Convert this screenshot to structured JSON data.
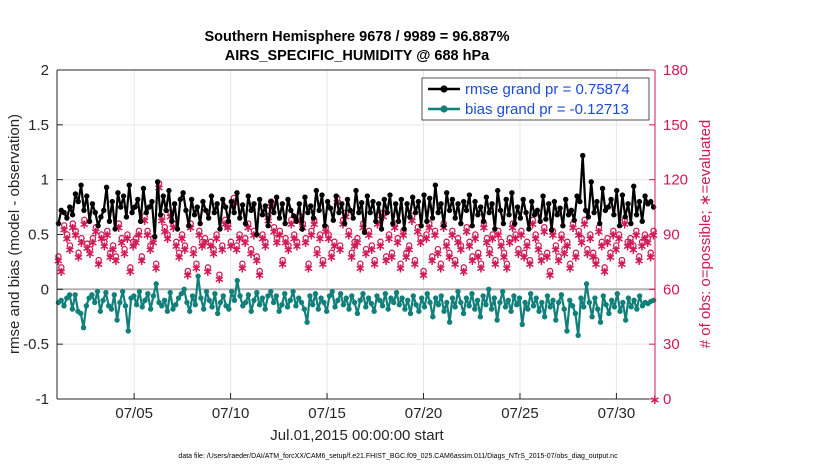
{
  "chart_data": {
    "type": "line",
    "title_line1": "Southern Hemisphere 9678 / 9989 = 96.887%",
    "title_line2": "AIRS_SPECIFIC_HUMIDITY @ 688 hPa",
    "ylabel": "rmse and bias (model - observation)",
    "ylabel_right": "# of obs: o=possible; ∗=evaluated",
    "xlabel": "Jul.01,2015 00:00:00 start",
    "footnote": "data file: /Users/raeder/DAI/ATM_forcXX/CAM6_setup/f.e21.FHIST_BGC.f09_025.CAM6assim.011/Diags_NTrS_2015-07/obs_diag_output.nc",
    "ylim": [
      -1,
      2
    ],
    "ylim_right": [
      0,
      180
    ],
    "xlim": [
      1,
      32
    ],
    "yticks": [
      "-1",
      "-0.5",
      "0",
      "0.5",
      "1",
      "1.5",
      "2"
    ],
    "yticks_right": [
      "0",
      "30",
      "60",
      "90",
      "120",
      "150",
      "180"
    ],
    "xticks": [
      {
        "day": 5,
        "label": "07/05"
      },
      {
        "day": 10,
        "label": "07/10"
      },
      {
        "day": 15,
        "label": "07/15"
      },
      {
        "day": 20,
        "label": "07/20"
      },
      {
        "day": 25,
        "label": "07/25"
      },
      {
        "day": 30,
        "label": "07/30"
      }
    ],
    "legend": [
      {
        "name": "rmse grand pr = 0.75874",
        "color": "#000000"
      },
      {
        "name": "bias grand pr = -0.12713",
        "color": "#12807a"
      }
    ],
    "colors": {
      "rmse": "#000000",
      "bias": "#12807a",
      "obs": "#d01a55",
      "zero": "#b3b3b3"
    },
    "series": [
      {
        "name": "rmse",
        "values": [
          0.6,
          0.72,
          0.7,
          0.65,
          0.75,
          0.68,
          0.87,
          0.8,
          0.95,
          0.72,
          0.85,
          0.62,
          0.78,
          0.7,
          0.58,
          0.66,
          0.72,
          0.93,
          0.62,
          0.8,
          0.55,
          0.88,
          0.75,
          0.85,
          0.66,
          0.95,
          0.7,
          0.75,
          0.82,
          0.62,
          0.92,
          0.7,
          0.75,
          0.8,
          0.48,
          0.98,
          0.68,
          0.85,
          0.72,
          0.9,
          0.62,
          0.78,
          0.55,
          0.82,
          0.88,
          0.72,
          0.58,
          0.82,
          0.68,
          0.75,
          0.6,
          0.8,
          0.72,
          0.65,
          0.85,
          0.7,
          0.78,
          0.55,
          0.82,
          0.75,
          0.62,
          0.8,
          0.7,
          0.88,
          0.65,
          0.77,
          0.6,
          0.85,
          0.72,
          0.78,
          0.5,
          0.82,
          0.68,
          0.76,
          0.58,
          0.8,
          0.7,
          0.84,
          0.65,
          0.78,
          0.6,
          0.82,
          0.72,
          0.67,
          0.62,
          0.78,
          0.55,
          0.84,
          0.7,
          0.76,
          0.65,
          0.9,
          0.72,
          0.86,
          0.58,
          0.8,
          0.74,
          0.63,
          0.85,
          0.7,
          0.78,
          0.6,
          0.82,
          0.72,
          0.65,
          0.9,
          0.7,
          0.79,
          0.52,
          0.85,
          0.7,
          0.8,
          0.62,
          0.78,
          0.55,
          0.82,
          0.7,
          0.86,
          0.6,
          0.78,
          0.62,
          0.82,
          0.55,
          0.78,
          0.66,
          0.84,
          0.7,
          0.8,
          0.58,
          0.86,
          0.62,
          0.83,
          0.65,
          0.95,
          0.7,
          0.78,
          0.58,
          0.88,
          0.72,
          0.82,
          0.65,
          0.78,
          0.6,
          0.8,
          0.72,
          0.86,
          0.58,
          0.8,
          0.68,
          0.75,
          0.62,
          0.84,
          0.7,
          0.78,
          0.55,
          0.9,
          0.72,
          0.6,
          0.82,
          0.68,
          0.88,
          0.6,
          0.75,
          0.65,
          0.82,
          0.7,
          0.55,
          0.8,
          0.68,
          0.72,
          0.62,
          0.85,
          0.64,
          0.78,
          0.54,
          0.8,
          0.68,
          0.74,
          0.58,
          0.82,
          0.68,
          0.72,
          0.63,
          0.85,
          0.8,
          1.22,
          0.72,
          0.66,
          0.98,
          0.7,
          0.8,
          0.6,
          0.92,
          0.72,
          0.75,
          0.82,
          0.68,
          0.9,
          0.58,
          0.86,
          0.66,
          0.78,
          0.6,
          0.94,
          0.68,
          0.8,
          0.62,
          0.85,
          0.78,
          0.8,
          0.75
        ]
      },
      {
        "name": "bias",
        "values": [
          -0.12,
          -0.1,
          -0.15,
          -0.08,
          -0.05,
          -0.18,
          -0.05,
          -0.2,
          -0.22,
          -0.35,
          -0.15,
          -0.08,
          -0.05,
          -0.12,
          -0.02,
          -0.2,
          -0.1,
          -0.03,
          -0.15,
          -0.18,
          -0.05,
          -0.28,
          -0.12,
          -0.02,
          -0.15,
          -0.38,
          -0.08,
          -0.06,
          -0.14,
          -0.02,
          -0.16,
          -0.1,
          -0.04,
          -0.18,
          -0.06,
          0.05,
          -0.12,
          -0.15,
          -0.1,
          -0.2,
          -0.03,
          -0.18,
          -0.14,
          -0.08,
          -0.04,
          0.0,
          -0.12,
          -0.2,
          -0.06,
          -0.14,
          0.12,
          -0.08,
          -0.18,
          -0.02,
          -0.1,
          -0.16,
          -0.04,
          -0.22,
          -0.12,
          -0.06,
          -0.15,
          -0.18,
          -0.02,
          -0.1,
          0.08,
          -0.06,
          -0.15,
          -0.12,
          -0.05,
          -0.2,
          -0.1,
          -0.03,
          -0.14,
          -0.08,
          -0.18,
          -0.06,
          -0.02,
          -0.12,
          -0.06,
          -0.2,
          -0.14,
          -0.04,
          -0.16,
          -0.1,
          -0.02,
          -0.15,
          -0.08,
          -0.12,
          -0.18,
          -0.3,
          -0.06,
          -0.14,
          -0.04,
          -0.18,
          -0.08,
          -0.12,
          -0.2,
          -0.06,
          -0.02,
          -0.16,
          -0.1,
          -0.04,
          -0.14,
          -0.08,
          -0.18,
          -0.06,
          -0.12,
          -0.22,
          -0.1,
          -0.04,
          -0.16,
          -0.08,
          -0.13,
          -0.2,
          -0.06,
          -0.1,
          -0.15,
          -0.04,
          -0.18,
          -0.08,
          -0.12,
          -0.03,
          -0.14,
          -0.08,
          -0.18,
          -0.1,
          -0.22,
          -0.06,
          -0.14,
          -0.2,
          -0.08,
          -0.16,
          -0.04,
          -0.12,
          -0.25,
          -0.08,
          -0.14,
          -0.06,
          -0.2,
          -0.12,
          -0.3,
          -0.08,
          -0.16,
          -0.02,
          -0.12,
          -0.22,
          -0.08,
          -0.15,
          -0.04,
          -0.18,
          -0.1,
          -0.25,
          -0.06,
          -0.14,
          0.0,
          -0.18,
          -0.08,
          -0.28,
          -0.12,
          -0.02,
          -0.16,
          -0.1,
          -0.2,
          -0.06,
          -0.14,
          -0.08,
          -0.32,
          -0.12,
          -0.18,
          -0.04,
          -0.15,
          -0.08,
          -0.2,
          -0.12,
          -0.25,
          -0.06,
          -0.16,
          -0.1,
          -0.28,
          -0.12,
          -0.05,
          -0.18,
          -0.38,
          -0.1,
          -0.15,
          -0.22,
          -0.42,
          -0.08,
          -0.16,
          0.05,
          -0.12,
          -0.25,
          -0.08,
          -0.18,
          -0.3,
          -0.06,
          -0.14,
          -0.22,
          -0.1,
          -0.16,
          -0.04,
          -0.2,
          -0.12,
          -0.28,
          -0.08,
          -0.16,
          -0.1,
          -0.18,
          -0.06,
          -0.15,
          -0.12,
          -0.13,
          -0.11,
          -0.1
        ]
      }
    ],
    "obs_possible": [
      78,
      72,
      95,
      90,
      84,
      96,
      92,
      80,
      88,
      98,
      85,
      82,
      88,
      94,
      76,
      90,
      86,
      92,
      80,
      84,
      78,
      96,
      88,
      82,
      90,
      72,
      86,
      88,
      92,
      78,
      100,
      92,
      84,
      88,
      74,
      118,
      100,
      94,
      90,
      102,
      96,
      86,
      80,
      90,
      84,
      70,
      96,
      82,
      74,
      92,
      86,
      88,
      72,
      86,
      82,
      90,
      68,
      84,
      98,
      96,
      86,
      110,
      84,
      90,
      74,
      88,
      96,
      82,
      92,
      78,
      70,
      90,
      86,
      100,
      108,
      94,
      88,
      92,
      76,
      88,
      84,
      98,
      90,
      86,
      100,
      96,
      88,
      74,
      92,
      98,
      82,
      90,
      76,
      94,
      90,
      80,
      86,
      110,
      84,
      98,
      102,
      92,
      80,
      86,
      88,
      74,
      96,
      82,
      92,
      84,
      76,
      98,
      86,
      102,
      78,
      90,
      80,
      96,
      88,
      74,
      92,
      80,
      84,
      100,
      76,
      94,
      88,
      70,
      90,
      96,
      78,
      92,
      82,
      74,
      96,
      86,
      80,
      92,
      76,
      88,
      84,
      72,
      94,
      86,
      78,
      90,
      80,
      74,
      96,
      88,
      82,
      90,
      76,
      92,
      86,
      80,
      74,
      88,
      96,
      90,
      82,
      92,
      80,
      86,
      76,
      98,
      90,
      84,
      78,
      94,
      80,
      70,
      92,
      84,
      78,
      90,
      82,
      86,
      74,
      96,
      80,
      92,
      88,
      98,
      82,
      90,
      80,
      76,
      94,
      86,
      72,
      88,
      80,
      92,
      84,
      90,
      76,
      98,
      86,
      88,
      84,
      92,
      78,
      86,
      90,
      88,
      80,
      92
    ],
    "obs_evaluated": [
      76,
      70,
      93,
      88,
      82,
      94,
      90,
      78,
      86,
      96,
      83,
      80,
      86,
      92,
      74,
      88,
      84,
      90,
      78,
      82,
      76,
      94,
      86,
      80,
      88,
      70,
      84,
      86,
      90,
      76,
      98,
      90,
      82,
      86,
      72,
      116,
      98,
      92,
      88,
      100,
      94,
      84,
      78,
      88,
      82,
      68,
      94,
      80,
      72,
      90,
      84,
      86,
      70,
      84,
      80,
      88,
      66,
      82,
      96,
      94,
      84,
      108,
      82,
      88,
      72,
      86,
      94,
      80,
      90,
      76,
      68,
      88,
      84,
      98,
      106,
      92,
      86,
      90,
      74,
      86,
      82,
      96,
      88,
      84,
      98,
      94,
      86,
      72,
      90,
      96,
      80,
      88,
      74,
      92,
      88,
      78,
      84,
      108,
      82,
      96,
      100,
      90,
      78,
      84,
      86,
      72,
      94,
      80,
      90,
      82,
      74,
      96,
      84,
      100,
      76,
      88,
      78,
      94,
      86,
      72,
      90,
      78,
      82,
      98,
      74,
      92,
      86,
      68,
      88,
      94,
      76,
      90,
      80,
      72,
      94,
      84,
      78,
      90,
      74,
      86,
      82,
      70,
      92,
      84,
      76,
      88,
      78,
      72,
      94,
      86,
      80,
      88,
      74,
      90,
      84,
      78,
      72,
      86,
      94,
      88,
      80,
      90,
      78,
      84,
      74,
      96,
      88,
      82,
      76,
      92,
      78,
      68,
      90,
      82,
      76,
      88,
      80,
      84,
      72,
      94,
      78,
      90,
      86,
      96,
      80,
      88,
      78,
      74,
      92,
      84,
      70,
      86,
      78,
      90,
      82,
      88,
      74,
      96,
      84,
      86,
      82,
      90,
      76,
      84,
      88,
      86,
      78,
      90
    ]
  }
}
